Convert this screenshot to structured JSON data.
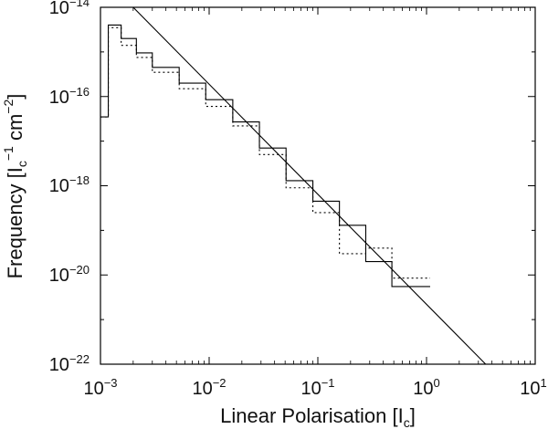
{
  "chart_data": {
    "type": "line",
    "title": "",
    "xlabel": {
      "main": "Linear Polarisation [I",
      "sub": "c",
      "close": "]"
    },
    "ylabel": {
      "main": "Frequency [I",
      "sub": "c",
      "sup1": "−1",
      "mid": " cm",
      "sup2": "−2",
      "close": "]"
    },
    "x_scale": "log",
    "y_scale": "log",
    "xlim": [
      0.001,
      10
    ],
    "ylim": [
      1e-22,
      1e-14
    ],
    "x_ticks": [
      {
        "base": "10",
        "exp": "−3",
        "value": 0.001
      },
      {
        "base": "10",
        "exp": "−2",
        "value": 0.01
      },
      {
        "base": "10",
        "exp": "−1",
        "value": 0.1
      },
      {
        "base": "10",
        "exp": "0",
        "value": 1
      },
      {
        "base": "10",
        "exp": "1",
        "value": 10
      }
    ],
    "y_ticks": [
      {
        "base": "10",
        "exp": "−14",
        "value": 1e-14
      },
      {
        "base": "10",
        "exp": "−16",
        "value": 1e-16
      },
      {
        "base": "10",
        "exp": "−18",
        "value": 1e-18
      },
      {
        "base": "10",
        "exp": "−20",
        "value": 1e-20
      },
      {
        "base": "10",
        "exp": "−22",
        "value": 1e-22
      }
    ],
    "grid": false,
    "series": [
      {
        "style": "solid-step",
        "edges": [
          0.001,
          0.00118,
          0.00155,
          0.00214,
          0.003,
          0.0053,
          0.0093,
          0.0165,
          0.029,
          0.051,
          0.09,
          0.158,
          0.276,
          0.48,
          1.08
        ],
        "values": [
          3.5e-17,
          4e-15,
          2e-15,
          9.5e-16,
          4.5e-16,
          2e-16,
          8.5e-17,
          2.7e-17,
          7e-18,
          1.3e-18,
          4.5e-19,
          1.3e-19,
          2e-20,
          5.5e-21
        ]
      },
      {
        "style": "dotted-step",
        "edges": [
          0.001,
          0.00118,
          0.00155,
          0.00214,
          0.003,
          0.0053,
          0.0093,
          0.0165,
          0.029,
          0.051,
          0.09,
          0.158,
          0.276,
          0.48,
          1.08
        ],
        "values": [
          3.5e-17,
          3.5e-15,
          1.4e-15,
          7.5e-16,
          3.5e-16,
          1.5e-16,
          6e-17,
          2.2e-17,
          5e-18,
          9e-19,
          2.5e-19,
          3e-20,
          4e-20,
          8.5e-21
        ]
      },
      {
        "style": "power-law-fit",
        "x": [
          0.002,
          3.5
        ],
        "y": [
          1e-14,
          1e-22
        ]
      }
    ]
  }
}
